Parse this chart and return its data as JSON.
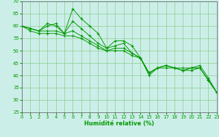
{
  "xlabel": "Humidité relative (%)",
  "bg_color": "#cceee8",
  "grid_color": "#88cc88",
  "line_color": "#009900",
  "marker": "+",
  "xmin": 0,
  "xmax": 23,
  "ymin": 25,
  "ymax": 70,
  "yticks": [
    25,
    30,
    35,
    40,
    45,
    50,
    55,
    60,
    65,
    70
  ],
  "xticks": [
    0,
    1,
    2,
    3,
    4,
    5,
    6,
    7,
    8,
    9,
    10,
    11,
    12,
    13,
    14,
    15,
    16,
    17,
    18,
    19,
    20,
    21,
    22,
    23
  ],
  "lines": [
    [
      60,
      59,
      58,
      61,
      60,
      57,
      67,
      63,
      60,
      57,
      51,
      54,
      54,
      52,
      47,
      41,
      43,
      44,
      43,
      43,
      43,
      44,
      39,
      33
    ],
    [
      60,
      59,
      58,
      60,
      61,
      57,
      62,
      59,
      56,
      53,
      51,
      52,
      53,
      49,
      47,
      40,
      43,
      44,
      43,
      42,
      43,
      43,
      38,
      33
    ],
    [
      60,
      58,
      57,
      57,
      57,
      56,
      56,
      55,
      53,
      51,
      50,
      50,
      50,
      48,
      47,
      41,
      43,
      43,
      43,
      42,
      42,
      43,
      38,
      33
    ],
    [
      60,
      59,
      58,
      58,
      58,
      57,
      58,
      56,
      54,
      52,
      50,
      51,
      51,
      49,
      47,
      41,
      43,
      44,
      43,
      42,
      43,
      43,
      38,
      33
    ]
  ],
  "xlabel_fontsize": 6,
  "tick_fontsize": 5
}
